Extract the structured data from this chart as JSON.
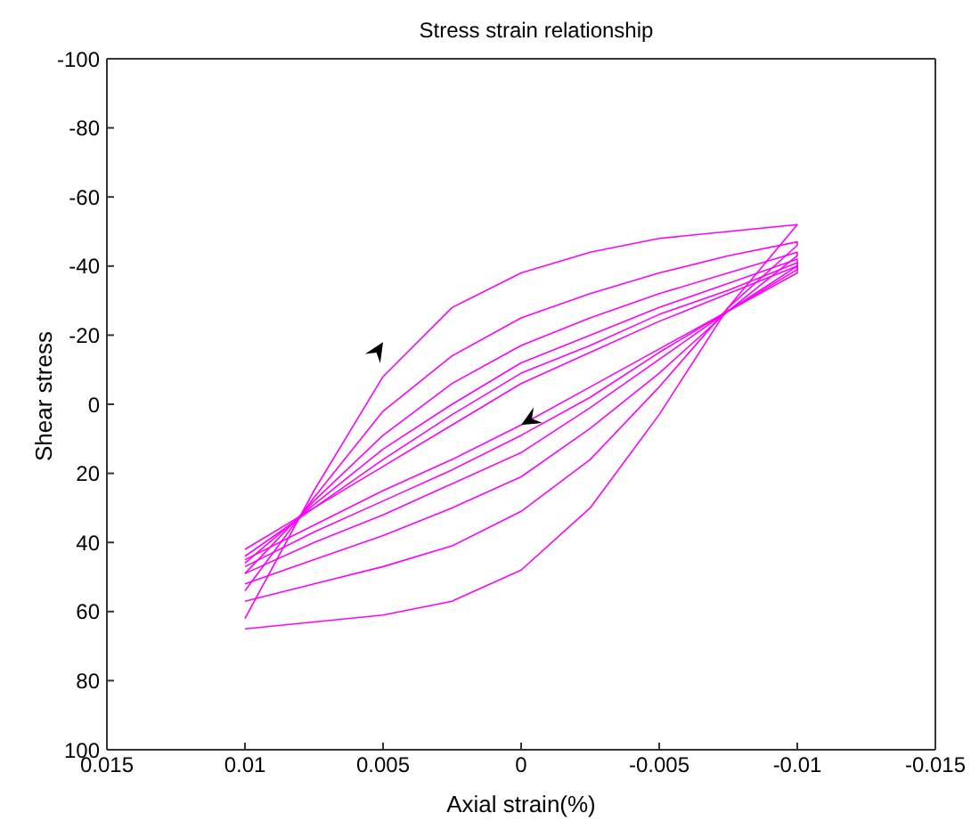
{
  "chart_data": {
    "type": "line",
    "title": "Stress strain relationship",
    "xlabel": "Axial strain(%)",
    "ylabel": "Shear stress",
    "xlim": [
      0.015,
      -0.015
    ],
    "xticks": [
      0.015,
      0.01,
      0.005,
      0,
      -0.005,
      -0.01,
      -0.015
    ],
    "ylim": [
      100,
      -100
    ],
    "yticks": [
      -100,
      -80,
      -60,
      -40,
      -20,
      0,
      20,
      40,
      60,
      80,
      100
    ],
    "grid": false,
    "marker": "none",
    "line_style": "solid",
    "series": [
      {
        "color": "#ff00ff",
        "x": [
          0.01,
          0.0075,
          0.005,
          0.0025,
          0,
          -0.0025,
          -0.005,
          -0.0075,
          -0.01,
          -0.01,
          -0.0075,
          -0.005,
          -0.0025,
          0,
          0.0025,
          0.005,
          0.0075,
          0.01
        ],
        "values": [
          62,
          25,
          -8,
          -28,
          -38,
          -44,
          -48,
          -50,
          -52,
          -52,
          -28,
          3,
          30,
          48,
          57,
          61,
          63,
          65
        ]
      },
      {
        "color": "#ff00ff",
        "x": [
          0.01,
          0.0075,
          0.005,
          0.0025,
          0,
          -0.0025,
          -0.005,
          -0.0075,
          -0.01,
          -0.01,
          -0.0075,
          -0.005,
          -0.0025,
          0,
          0.0025,
          0.005,
          0.0075,
          0.01
        ],
        "values": [
          54,
          27,
          2,
          -14,
          -25,
          -32,
          -38,
          -43,
          -47,
          -46,
          -28,
          -5,
          16,
          31,
          41,
          47,
          52,
          57
        ]
      },
      {
        "color": "#ff00ff",
        "x": [
          0.01,
          0.0075,
          0.005,
          0.0025,
          0,
          -0.0025,
          -0.005,
          -0.0075,
          -0.01,
          -0.01,
          -0.0075,
          -0.005,
          -0.0025,
          0,
          0.0025,
          0.005,
          0.0075,
          0.01
        ],
        "values": [
          49,
          28,
          9,
          -6,
          -17,
          -25,
          -32,
          -38,
          -44,
          -43,
          -27,
          -9,
          7,
          21,
          30,
          38,
          45,
          52
        ]
      },
      {
        "color": "#ff00ff",
        "x": [
          0.01,
          0.0075,
          0.005,
          0.0025,
          0,
          -0.0025,
          -0.005,
          -0.0075,
          -0.01,
          -0.01,
          -0.0075,
          -0.005,
          -0.0025,
          0,
          0.0025,
          0.005,
          0.0075,
          0.01
        ],
        "values": [
          46,
          29,
          13,
          0,
          -12,
          -20,
          -28,
          -35,
          -42,
          -40,
          -27,
          -13,
          1,
          14,
          23,
          32,
          40,
          49
        ]
      },
      {
        "color": "#ff00ff",
        "x": [
          0.01,
          0.0075,
          0.005,
          0.0025,
          0,
          -0.0025,
          -0.005,
          -0.0075,
          -0.01,
          -0.01,
          -0.0075,
          -0.005,
          -0.0025,
          0,
          0.0025,
          0.005,
          0.0075,
          0.01
        ],
        "values": [
          44,
          30,
          16,
          3,
          -9,
          -17,
          -26,
          -33,
          -41,
          -39,
          -27,
          -15,
          -2,
          9,
          19,
          28,
          37,
          47
        ]
      },
      {
        "color": "#ff00ff",
        "x": [
          0.01,
          0.0075,
          0.005,
          0.0025,
          0,
          -0.0025,
          -0.005,
          -0.0075,
          -0.01,
          -0.01,
          -0.0075,
          -0.005,
          -0.0025,
          0,
          0.0025,
          0.005,
          0.0075,
          0.01
        ],
        "values": [
          42,
          30,
          18,
          6,
          -6,
          -15,
          -24,
          -32,
          -40,
          -38,
          -27,
          -16,
          -5,
          6,
          16,
          25,
          35,
          45
        ]
      }
    ]
  }
}
